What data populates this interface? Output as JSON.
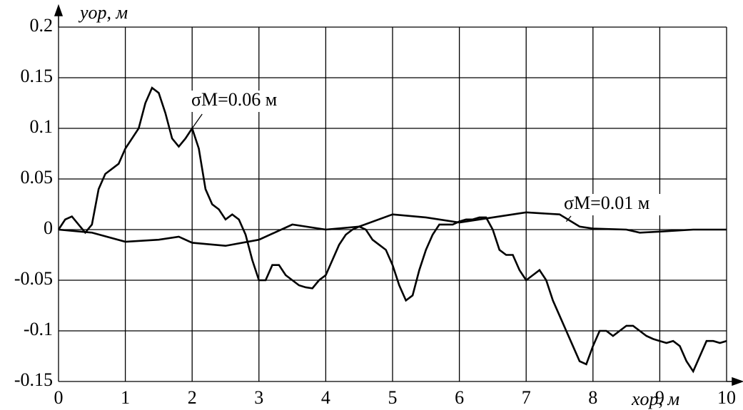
{
  "chart_data": {
    "type": "line",
    "y_label": "yор, м",
    "x_label": "xор, м",
    "xlim": [
      0,
      10
    ],
    "xticks": [
      0,
      1,
      2,
      3,
      4,
      5,
      6,
      7,
      8,
      9,
      10
    ],
    "ylim": [
      -0.15,
      0.2
    ],
    "yticks": [
      0.2,
      0.15,
      0.1,
      0.05,
      0,
      -0.05,
      -0.1,
      -0.15
    ],
    "grid": true,
    "series": [
      {
        "name": "σМ=0.06 м",
        "color": "#000",
        "x": [
          0,
          0.1,
          0.2,
          0.3,
          0.4,
          0.5,
          0.6,
          0.7,
          0.8,
          0.9,
          1.0,
          1.1,
          1.2,
          1.3,
          1.4,
          1.5,
          1.6,
          1.7,
          1.8,
          1.9,
          2.0,
          2.1,
          2.2,
          2.3,
          2.4,
          2.5,
          2.6,
          2.7,
          2.8,
          2.9,
          3.0,
          3.1,
          3.2,
          3.3,
          3.4,
          3.5,
          3.6,
          3.7,
          3.8,
          3.9,
          4.0,
          4.1,
          4.2,
          4.3,
          4.4,
          4.5,
          4.6,
          4.7,
          4.8,
          4.9,
          5.0,
          5.1,
          5.2,
          5.3,
          5.4,
          5.5,
          5.6,
          5.7,
          5.8,
          5.9,
          6.0,
          6.1,
          6.2,
          6.3,
          6.4,
          6.5,
          6.6,
          6.7,
          6.8,
          6.9,
          7.0,
          7.1,
          7.2,
          7.3,
          7.4,
          7.5,
          7.6,
          7.7,
          7.8,
          7.9,
          8.0,
          8.1,
          8.2,
          8.3,
          8.4,
          8.5,
          8.6,
          8.7,
          8.8,
          8.9,
          9.0,
          9.1,
          9.2,
          9.3,
          9.4,
          9.5,
          9.6,
          9.7,
          9.8,
          9.9,
          10
        ],
        "values": [
          0,
          0.01,
          0.013,
          0.005,
          -0.003,
          0.005,
          0.04,
          0.055,
          0.06,
          0.065,
          0.08,
          0.09,
          0.1,
          0.125,
          0.14,
          0.135,
          0.115,
          0.09,
          0.082,
          0.09,
          0.1,
          0.08,
          0.04,
          0.025,
          0.02,
          0.01,
          0.015,
          0.01,
          -0.005,
          -0.03,
          -0.05,
          -0.05,
          -0.035,
          -0.035,
          -0.045,
          -0.05,
          -0.055,
          -0.057,
          -0.058,
          -0.05,
          -0.045,
          -0.03,
          -0.015,
          -0.005,
          0,
          0.003,
          0,
          -0.01,
          -0.015,
          -0.02,
          -0.035,
          -0.055,
          -0.07,
          -0.065,
          -0.04,
          -0.02,
          -0.005,
          0.005,
          0.005,
          0.005,
          0.008,
          0.01,
          0.01,
          0.012,
          0.012,
          0,
          -0.02,
          -0.025,
          -0.025,
          -0.04,
          -0.05,
          -0.045,
          -0.04,
          -0.05,
          -0.07,
          -0.085,
          -0.1,
          -0.115,
          -0.13,
          -0.133,
          -0.115,
          -0.1,
          -0.1,
          -0.105,
          -0.1,
          -0.095,
          -0.095,
          -0.1,
          -0.105,
          -0.108,
          -0.11,
          -0.112,
          -0.11,
          -0.115,
          -0.13,
          -0.14,
          -0.125,
          -0.11,
          -0.11,
          -0.112,
          -0.11
        ]
      },
      {
        "name": "σМ=0.01 м",
        "color": "#000",
        "x": [
          0,
          0.5,
          1.0,
          1.5,
          1.8,
          2.0,
          2.5,
          3.0,
          3.5,
          4.0,
          4.5,
          5.0,
          5.5,
          6.0,
          6.5,
          7.0,
          7.5,
          7.8,
          8.0,
          8.5,
          8.7,
          9.0,
          9.5,
          10
        ],
        "values": [
          0,
          -0.003,
          -0.012,
          -0.01,
          -0.007,
          -0.013,
          -0.016,
          -0.01,
          0.005,
          0,
          0.003,
          0.015,
          0.012,
          0.007,
          0.012,
          0.017,
          0.015,
          0.003,
          0.001,
          0,
          -0.003,
          -0.002,
          0,
          0
        ]
      }
    ]
  }
}
